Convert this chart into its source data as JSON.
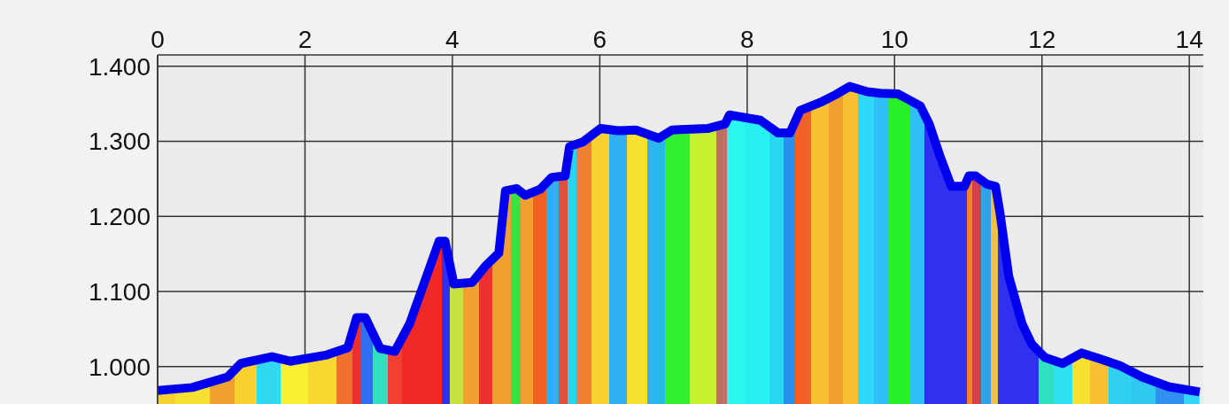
{
  "chart_data": {
    "type": "area",
    "x": [
      0,
      0.47,
      0.95,
      1.13,
      1.55,
      1.8,
      2.28,
      2.58,
      2.7,
      2.82,
      3.02,
      3.22,
      3.42,
      3.82,
      3.9,
      4.02,
      4.27,
      4.45,
      4.63,
      4.72,
      4.87,
      4.99,
      5.19,
      5.35,
      5.53,
      5.59,
      5.77,
      6.01,
      6.25,
      6.49,
      6.8,
      6.98,
      7.46,
      7.7,
      7.76,
      8.18,
      8.42,
      8.58,
      8.72,
      9.02,
      9.2,
      9.39,
      9.63,
      9.81,
      10.05,
      10.35,
      10.47,
      10.61,
      10.77,
      10.95,
      11.01,
      11.1,
      11.25,
      11.37,
      11.43,
      11.55,
      11.73,
      11.86,
      12.04,
      12.28,
      12.54,
      12.76,
      13.06,
      13.36,
      13.72,
      14.14
    ],
    "series": [
      {
        "color": "#0000ee",
        "values": [
          968,
          972,
          986,
          1004,
          1013,
          1007,
          1015,
          1025,
          1065,
          1065,
          1024,
          1020,
          1057,
          1167,
          1167,
          1110,
          1112,
          1134,
          1151,
          1234,
          1237,
          1228,
          1236,
          1252,
          1254,
          1293,
          1299,
          1317,
          1314,
          1315,
          1304,
          1315,
          1317,
          1323,
          1335,
          1328,
          1311,
          1311,
          1341,
          1353,
          1362,
          1373,
          1366,
          1364,
          1363,
          1347,
          1323,
          1282,
          1240,
          1240,
          1254,
          1254,
          1243,
          1240,
          1205,
          1120,
          1057,
          1030,
          1012,
          1004,
          1018,
          1011,
          1001,
          986,
          973,
          966
        ],
        "colors": [
          "#f5d130",
          "#f8e030",
          "#f0a030",
          "#f8d030",
          "#30d8f0",
          "#f8f030",
          "#f8d830",
          "#f07030",
          "#f03030",
          "#3070f0",
          "#30e0c0",
          "#f04030",
          "#f02828",
          "#f02828",
          "#3030f0",
          "#c8e040",
          "#f0a030",
          "#f03030",
          "#f0a030",
          "#f0a030",
          "#40e040",
          "#f0a030",
          "#f06020",
          "#30b0f0",
          "#e05040",
          "#30d0f0",
          "#f08030",
          "#f8d030",
          "#30b0f0",
          "#f8e030",
          "#28b8f0",
          "#30f030",
          "#c8f030",
          "#c07060",
          "#28f8f0",
          "#28f0f0",
          "#28d8f0",
          "#2890f0",
          "#f06028",
          "#f8c030",
          "#f0a030",
          "#f8c030",
          "#30d8f8",
          "#30c0f8",
          "#28f028",
          "#30c0f8",
          "#3030f0",
          "#3030f0",
          "#3030f0",
          "#3030f0",
          "#f08030",
          "#d04050",
          "#30a0f0",
          "#f0c040",
          "#3030f0",
          "#3030f0",
          "#3030f0",
          "#3030f0",
          "#30e0c0",
          "#30e0f0",
          "#f8e030",
          "#f8c030",
          "#30d0f0",
          "#30c8f0",
          "#3090f0",
          "#30d8f8"
        ]
      }
    ],
    "xlim": [
      0,
      14.19
    ],
    "xticks": [
      0,
      2,
      4,
      6,
      8,
      10,
      12,
      14
    ],
    "ylim": [
      950,
      1415
    ],
    "yticks": [
      {
        "value": 1000,
        "label": "1.000"
      },
      {
        "value": 1100,
        "label": "1.100"
      },
      {
        "value": 1200,
        "label": "1.200"
      },
      {
        "value": 1300,
        "label": "1.300"
      },
      {
        "value": 1400,
        "label": "1.400"
      }
    ],
    "grid": true
  }
}
